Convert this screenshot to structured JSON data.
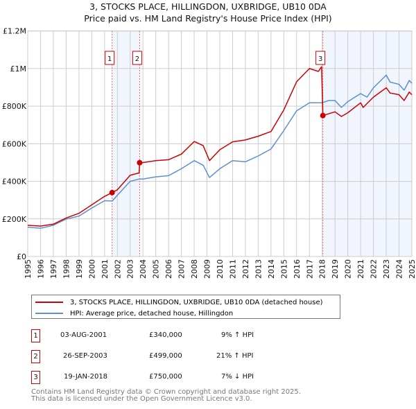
{
  "chart_data": {
    "type": "line",
    "title": "3, STOCKS PLACE, HILLINGDON, UXBRIDGE, UB10 0DA",
    "subtitle": "Price paid vs. HM Land Registry's House Price Index (HPI)",
    "xlim": [
      1995,
      2025
    ],
    "ylim": [
      0,
      1200000
    ],
    "grid": true,
    "x_ticks": [
      "1995",
      "1996",
      "1997",
      "1998",
      "1999",
      "2000",
      "2001",
      "2002",
      "2003",
      "2004",
      "2005",
      "2006",
      "2007",
      "2008",
      "2009",
      "2010",
      "2011",
      "2012",
      "2013",
      "2014",
      "2015",
      "2016",
      "2017",
      "2018",
      "2019",
      "2020",
      "2021",
      "2022",
      "2023",
      "2024",
      "2025"
    ],
    "y_ticks": [
      {
        "value": 0,
        "label": "£0"
      },
      {
        "value": 200000,
        "label": "£200K"
      },
      {
        "value": 400000,
        "label": "£400K"
      },
      {
        "value": 600000,
        "label": "£600K"
      },
      {
        "value": 800000,
        "label": "£800K"
      },
      {
        "value": 1000000,
        "label": "£1M"
      },
      {
        "value": 1200000,
        "label": "£1.2M"
      }
    ],
    "series": [
      {
        "name": "3, STOCKS PLACE, HILLINGDON, UXBRIDGE, UB10 0DA (detached house)",
        "color": "#cc0000",
        "x": [
          1995,
          1996,
          1997,
          1998,
          1999,
          2000,
          2001,
          2001.59,
          2002,
          2003,
          2003.7,
          2003.74,
          2004,
          2005,
          2006,
          2007,
          2008,
          2008.7,
          2009.2,
          2010,
          2011,
          2012,
          2013,
          2014,
          2015,
          2016,
          2017,
          2017.7,
          2017.95,
          2018.05,
          2019,
          2019.5,
          2020,
          2021,
          2021.2,
          2022,
          2023,
          2023.3,
          2024,
          2024.4,
          2024.8,
          2025
        ],
        "y": [
          166000,
          162000,
          172000,
          205000,
          230000,
          275000,
          320000,
          340000,
          355000,
          432000,
          445000,
          499000,
          500000,
          510000,
          515000,
          545000,
          612000,
          590000,
          510000,
          568000,
          610000,
          620000,
          640000,
          665000,
          780000,
          930000,
          1000000,
          985000,
          1010000,
          750000,
          770000,
          745000,
          765000,
          818000,
          793000,
          848000,
          898000,
          870000,
          861000,
          830000,
          875000,
          861000
        ]
      },
      {
        "name": "HPI: Average price, detached house, Hillingdon",
        "color": "#5b8fd0",
        "x": [
          1995,
          1996,
          1997,
          1998,
          1999,
          2000,
          2001,
          2001.6,
          2002,
          2003,
          2003.7,
          2004,
          2005,
          2006,
          2007,
          2008,
          2008.7,
          2009.2,
          2010,
          2011,
          2012,
          2013,
          2014,
          2015,
          2016,
          2017,
          2018,
          2018.5,
          2019,
          2019.5,
          2020,
          2021,
          2021.5,
          2022,
          2023,
          2023.3,
          2024,
          2024.4,
          2024.8,
          2025
        ],
        "y": [
          156000,
          150000,
          166000,
          199000,
          215000,
          258000,
          297000,
          295000,
          326000,
          400000,
          412000,
          412000,
          424000,
          430000,
          467000,
          510000,
          486000,
          420000,
          467000,
          510000,
          504000,
          535000,
          572000,
          670000,
          775000,
          818000,
          818000,
          830000,
          830000,
          793000,
          824000,
          867000,
          848000,
          898000,
          965000,
          928000,
          916000,
          885000,
          937000,
          922000
        ]
      }
    ],
    "sales": [
      {
        "num": "1",
        "x": 2001.59,
        "y": 340000,
        "date": "03-AUG-2001",
        "price": "£340,000",
        "hpi": "9% ↑ HPI"
      },
      {
        "num": "2",
        "x": 2003.74,
        "y": 499000,
        "date": "26-SEP-2003",
        "price": "£499,000",
        "hpi": "21% ↑ HPI"
      },
      {
        "num": "3",
        "x": 2018.05,
        "y": 750000,
        "date": "19-JAN-2018",
        "price": "£750,000",
        "hpi": "7% ↓ HPI"
      }
    ],
    "shaded_ranges": [
      [
        2001.59,
        2003.74
      ],
      [
        2018.05,
        2025
      ]
    ],
    "legend_placement": "below"
  },
  "footer": {
    "line1": "Contains HM Land Registry data © Crown copyright and database right 2025.",
    "line2": "This data is licensed under the Open Government Licence v3.0."
  }
}
